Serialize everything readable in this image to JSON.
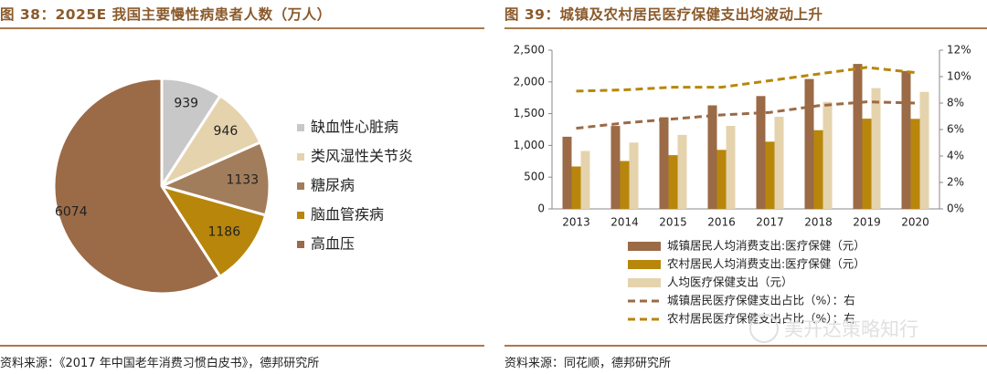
{
  "left": {
    "title": "图 38：2025E 我国主要慢性病患者人数（万人）",
    "source": "资料来源：《2017 年中国老年消费习惯白皮书》，德邦研究所"
  },
  "right": {
    "title": "图 39：城镇及农村居民医疗保健支出均波动上升",
    "source": "资料来源：同花顺，德邦研究所"
  },
  "watermark": {
    "text": "美开达策略知行"
  },
  "chart_data": [
    {
      "type": "pie",
      "title": "2025E 我国主要慢性病患者人数（万人）",
      "slices": [
        {
          "label": "缺血性心脏病",
          "value": 939,
          "color": "#c8c8c8"
        },
        {
          "label": "类风湿性关节炎",
          "value": 946,
          "color": "#e5d3ad"
        },
        {
          "label": "糖尿病",
          "value": 1133,
          "color": "#a27d5c"
        },
        {
          "label": "脑血管疾病",
          "value": 1186,
          "color": "#b8860b"
        },
        {
          "label": "高血压",
          "value": 6074,
          "color": "#9b6a46"
        }
      ],
      "legend_position": "right"
    },
    {
      "type": "bar",
      "title": "城镇及农村居民医疗保健支出均波动上升",
      "categories": [
        "2013",
        "2014",
        "2015",
        "2016",
        "2017",
        "2018",
        "2019",
        "2020"
      ],
      "series": [
        {
          "name": "城镇居民人均消费支出:医疗保健（元）",
          "type": "bar",
          "axis": "left",
          "color": "#9b6a46",
          "values": [
            1136,
            1306,
            1443,
            1631,
            1777,
            2046,
            2283,
            2172
          ]
        },
        {
          "name": "农村居民人均消费支出:医疗保健（元）",
          "type": "bar",
          "axis": "left",
          "color": "#b8860b",
          "values": [
            668,
            754,
            846,
            929,
            1059,
            1240,
            1421,
            1418
          ]
        },
        {
          "name": "人均医疗保健支出（元）",
          "type": "bar",
          "axis": "left",
          "color": "#e5d3ad",
          "values": [
            912,
            1045,
            1165,
            1307,
            1451,
            1685,
            1902,
            1843
          ]
        },
        {
          "name": "城镇居民医疗保健支出占比（%）：右",
          "type": "line",
          "axis": "right",
          "color": "#9b6a46",
          "values": [
            6.1,
            6.5,
            6.8,
            7.1,
            7.3,
            7.8,
            8.1,
            8.0
          ]
        },
        {
          "name": "农村居民医疗保健支出占比（%）：右",
          "type": "line",
          "axis": "right",
          "color": "#b8860b",
          "values": [
            8.9,
            9.0,
            9.2,
            9.2,
            9.7,
            10.2,
            10.7,
            10.3
          ]
        }
      ],
      "y_left": {
        "min": 0,
        "max": 2500,
        "ticks": [
          0,
          500,
          1000,
          1500,
          2000,
          2500
        ],
        "tick_labels": [
          "0",
          "500",
          "1,000",
          "1,500",
          "2,000",
          "2,500"
        ]
      },
      "y_right": {
        "min": 0,
        "max": 12,
        "ticks": [
          0,
          2,
          4,
          6,
          8,
          10,
          12
        ],
        "tick_labels": [
          "0%",
          "2%",
          "4%",
          "6%",
          "8%",
          "10%",
          "12%"
        ]
      },
      "grid": false,
      "legend_position": "bottom"
    }
  ]
}
